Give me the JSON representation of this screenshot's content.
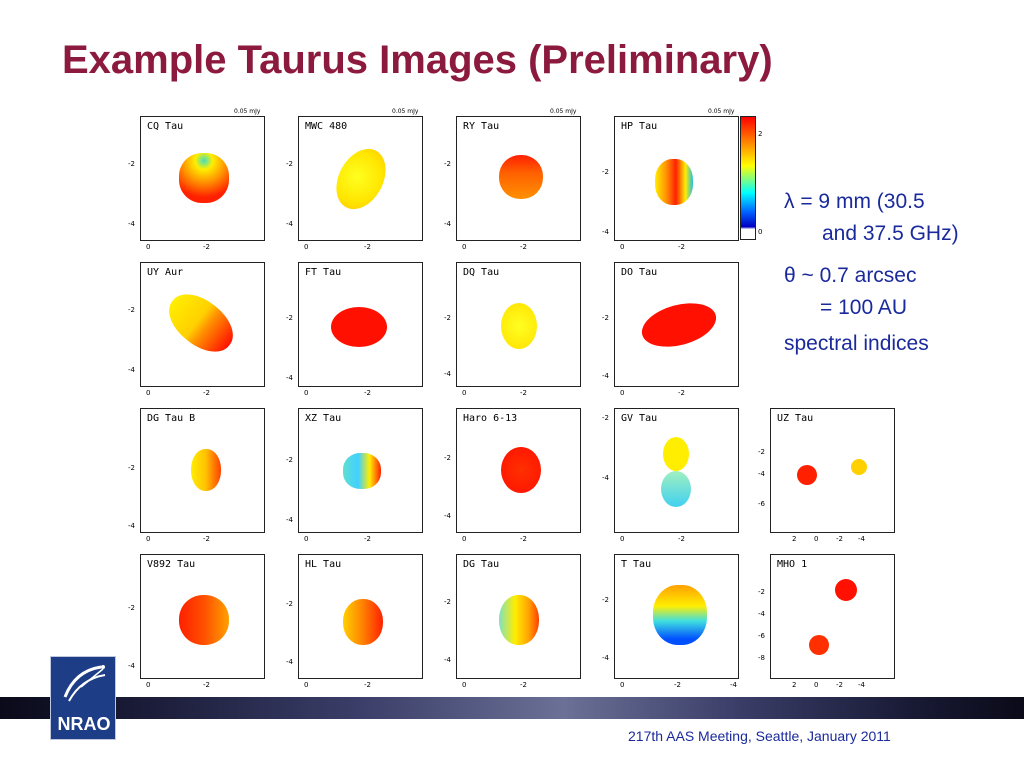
{
  "slide": {
    "title": "Example Taurus Images (Preliminary)",
    "footer": "217th AAS Meeting, Seattle, January 2011",
    "logo_text": "NRAO"
  },
  "colors": {
    "title": "#8b1a3e",
    "text": "#1a2a9c"
  },
  "info": {
    "line1": "λ = 9 mm (30.5",
    "line2": "and 37.5 GHz)",
    "line3": "θ ~ 0.7 arcsec",
    "line4": "= 100 AU",
    "line5": "spectral indices"
  },
  "colorbar": {
    "tick_top": "2",
    "tick_bottom": "0"
  },
  "panels": [
    {
      "label": "CQ Tau",
      "scale": "0.05 mJy"
    },
    {
      "label": "MWC 480",
      "scale": "0.05 mJy"
    },
    {
      "label": "RY Tau",
      "scale": "0.05 mJy"
    },
    {
      "label": "HP Tau",
      "scale": "0.05 mJy"
    },
    {
      "label": "UY Aur"
    },
    {
      "label": "FT Tau"
    },
    {
      "label": "DQ Tau"
    },
    {
      "label": "DO Tau"
    },
    {
      "label": "DG Tau B"
    },
    {
      "label": "XZ Tau"
    },
    {
      "label": "Haro 6-13"
    },
    {
      "label": "GV Tau"
    },
    {
      "label": "UZ Tau"
    },
    {
      "label": "V892 Tau"
    },
    {
      "label": "HL Tau"
    },
    {
      "label": "DG Tau"
    },
    {
      "label": "T Tau"
    },
    {
      "label": "MHO 1"
    }
  ],
  "ticks": {
    "y_a": "-2",
    "y_b": "-4",
    "y_c": "-6",
    "y_d": "-8",
    "x_0": "0",
    "x_a": "-2",
    "x_b": "-4",
    "x_2": "2"
  }
}
